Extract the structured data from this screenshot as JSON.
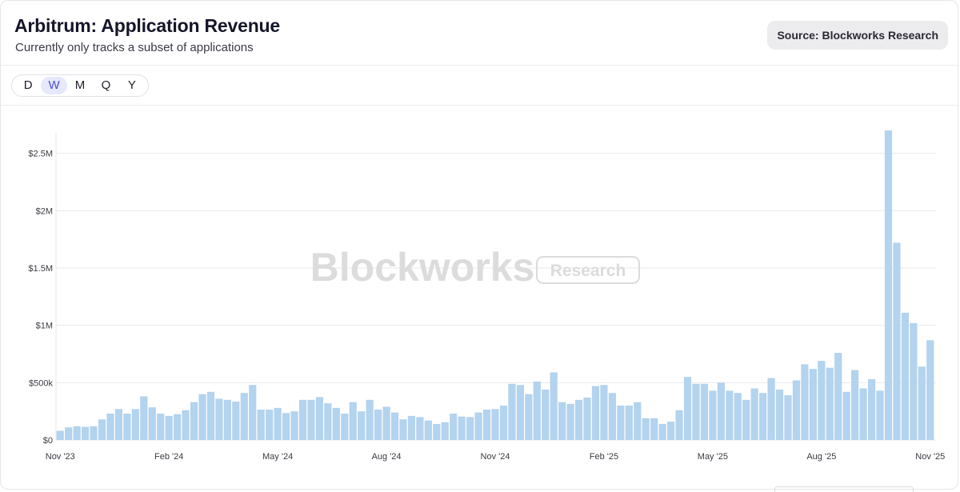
{
  "header": {
    "title": "Arbitrum: Application Revenue",
    "subtitle": "Currently only tracks a subset of applications",
    "source": "Source: Blockworks Research"
  },
  "toolbar": {
    "periods": [
      "D",
      "W",
      "M",
      "Q",
      "Y"
    ],
    "active_period": "W"
  },
  "watermark": {
    "brand": "Blockworks",
    "tag": "Research"
  },
  "colors": {
    "bar": "#b3d3ee",
    "grid": "#e9e9ec",
    "active_period_bg": "#e6e8fb",
    "active_period_text": "#4b4fd1"
  },
  "chart_data": {
    "type": "bar",
    "title": "Arbitrum: Application Revenue",
    "subtitle": "Currently only tracks a subset of applications",
    "interval": "weekly",
    "ylim": [
      0,
      2700000
    ],
    "y_ticks": [
      {
        "value": 0,
        "label": "$0"
      },
      {
        "value": 500000,
        "label": "$500k"
      },
      {
        "value": 1000000,
        "label": "$1M"
      },
      {
        "value": 1500000,
        "label": "$1.5M"
      },
      {
        "value": 2000000,
        "label": "$2M"
      },
      {
        "value": 2500000,
        "label": "$2.5M"
      }
    ],
    "x_ticks": [
      {
        "index": 0,
        "label": "Nov '23"
      },
      {
        "index": 13,
        "label": "Feb '24"
      },
      {
        "index": 26,
        "label": "May '24"
      },
      {
        "index": 39,
        "label": "Aug '24"
      },
      {
        "index": 52,
        "label": "Nov '24"
      },
      {
        "index": 65,
        "label": "Feb '25"
      },
      {
        "index": 78,
        "label": "May '25"
      },
      {
        "index": 91,
        "label": "Aug '25"
      },
      {
        "index": 104,
        "label": "Nov '25"
      }
    ],
    "grid": true,
    "legend": "none",
    "series": [
      {
        "values": [
          80000,
          110000,
          120000,
          115000,
          120000,
          180000,
          230000,
          270000,
          230000,
          270000,
          380000,
          285000,
          230000,
          210000,
          225000,
          260000,
          330000,
          400000,
          420000,
          360000,
          350000,
          335000,
          410000,
          480000,
          265000,
          265000,
          280000,
          235000,
          250000,
          350000,
          350000,
          375000,
          320000,
          280000,
          230000,
          330000,
          250000,
          350000,
          265000,
          290000,
          240000,
          180000,
          210000,
          200000,
          170000,
          140000,
          155000,
          230000,
          205000,
          200000,
          240000,
          265000,
          270000,
          300000,
          490000,
          480000,
          400000,
          510000,
          440000,
          590000,
          330000,
          315000,
          350000,
          370000,
          470000,
          480000,
          410000,
          300000,
          300000,
          330000,
          190000,
          190000,
          140000,
          160000,
          260000,
          550000,
          490000,
          490000,
          430000,
          500000,
          430000,
          410000,
          350000,
          450000,
          410000,
          540000,
          440000,
          390000,
          520000,
          660000,
          620000,
          690000,
          630000,
          760000,
          420000,
          610000,
          450000,
          530000,
          430000,
          2700000,
          1720000,
          1110000,
          1020000,
          640000,
          870000
        ]
      }
    ]
  }
}
